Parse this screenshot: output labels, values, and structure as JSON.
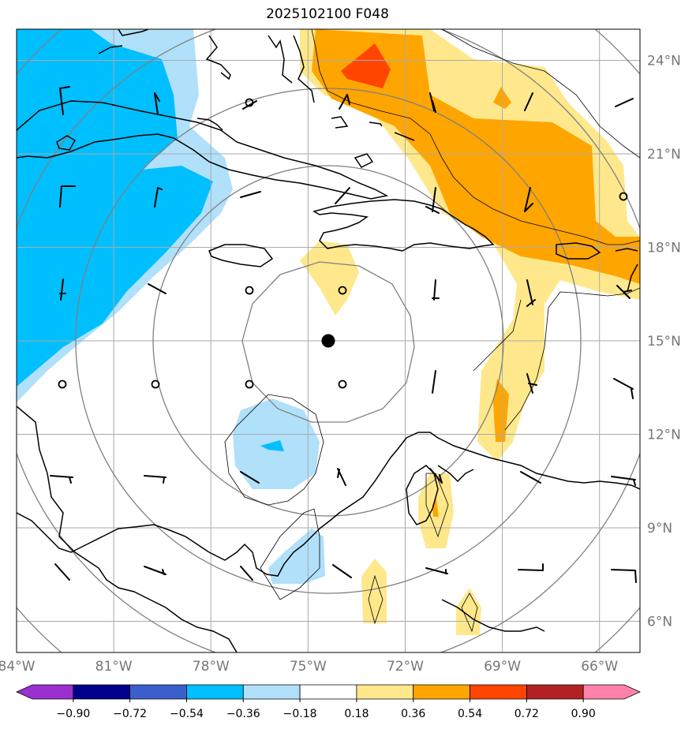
{
  "title": "2025102100 F048",
  "map": {
    "lon_range": [
      -84.0,
      -64.75
    ],
    "lat_range": [
      5.0,
      25.0
    ],
    "lon_ticks": [
      "84°W",
      "81°W",
      "78°W",
      "75°W",
      "72°W",
      "69°W",
      "66°W"
    ],
    "lon_tick_values": [
      -84,
      -81,
      -78,
      -75,
      -72,
      -69,
      -66
    ],
    "lat_ticks": [
      "24°N",
      "21°N",
      "18°N",
      "15°N",
      "12°N",
      "9°N",
      "6°N"
    ],
    "lat_tick_values": [
      24,
      21,
      18,
      15,
      12,
      9,
      6
    ],
    "center_marker": {
      "lon": -74.5,
      "lat": 15.4
    }
  },
  "colorbar": {
    "labels": [
      "−0.90",
      "−0.72",
      "−0.54",
      "−0.36",
      "−0.18",
      "0.18",
      "0.36",
      "0.54",
      "0.72",
      "0.90"
    ],
    "colors": [
      "#9b30d0",
      "#00008b",
      "#3a5fcd",
      "#00bfff",
      "#b0e0fa",
      "#ffffff",
      "#ffe88c",
      "#ffa500",
      "#ff4500",
      "#b22222",
      "#ff82ab"
    ]
  },
  "colors": {
    "neg_light": "#b0e0fa",
    "neg_mid": "#00bfff",
    "pos_light": "#ffe88c",
    "pos_mid": "#ffa500",
    "pos_high": "#ff4500",
    "grid": "#aaaaaa",
    "range_rings": "#808080"
  }
}
